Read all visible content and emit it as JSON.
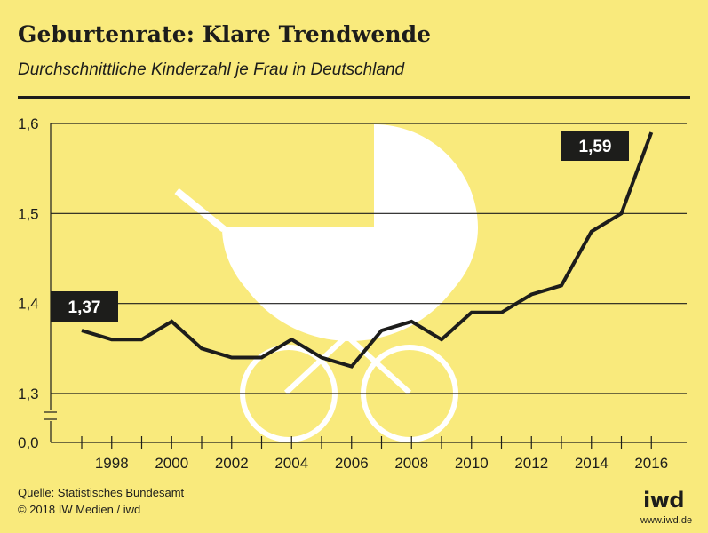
{
  "header": {
    "title": "Geburtenrate: Klare Trendwende",
    "subtitle": "Durchschnittliche Kinderzahl je Frau in Deutschland"
  },
  "chart_data": {
    "type": "line",
    "title": "Geburtenrate: Klare Trendwende",
    "subtitle": "Durchschnittliche Kinderzahl je Frau in Deutschland",
    "x": [
      1997,
      1998,
      1999,
      2000,
      2001,
      2002,
      2003,
      2004,
      2005,
      2006,
      2007,
      2008,
      2009,
      2010,
      2011,
      2012,
      2013,
      2014,
      2015,
      2016
    ],
    "series": [
      {
        "values": [
          1.37,
          1.36,
          1.36,
          1.38,
          1.35,
          1.34,
          1.34,
          1.36,
          1.34,
          1.33,
          1.37,
          1.38,
          1.36,
          1.39,
          1.39,
          1.41,
          1.42,
          1.48,
          1.5,
          1.59
        ]
      }
    ],
    "x_tick_labels": [
      "1998",
      "2000",
      "2002",
      "2004",
      "2006",
      "2008",
      "2010",
      "2012",
      "2014",
      "2016"
    ],
    "y_tick_labels": [
      "1,6",
      "1,5",
      "1,4",
      "1,3",
      "0,0"
    ],
    "ylim": [
      1.3,
      1.6
    ],
    "y_axis_break": true,
    "y_axis_floor_label": "0,0",
    "grid": "horizontal",
    "annotations": [
      {
        "text": "1,37",
        "x": 1997,
        "y": 1.37
      },
      {
        "text": "1,59",
        "x": 2016,
        "y": 1.59
      }
    ],
    "background_illustration": "baby-carriage",
    "colors": {
      "background": "#f9ea7c",
      "line": "#1d1d1b",
      "illustration": "#ffffff",
      "callout": "#1d1d1b"
    }
  },
  "footer": {
    "source": "Quelle: Statistisches Bundesamt",
    "copyright": "© 2018 IW Medien / iwd",
    "logo": "iwd",
    "url": "www.iwd.de"
  }
}
